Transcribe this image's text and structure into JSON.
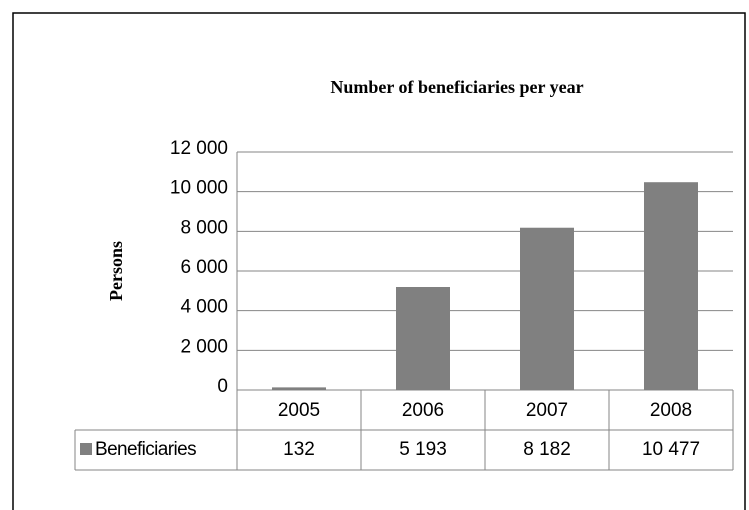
{
  "chart_data": {
    "type": "bar",
    "title": "Number of beneficiaries per year",
    "ylabel": "Persons",
    "categories": [
      "2005",
      "2006",
      "2007",
      "2008"
    ],
    "series": [
      {
        "name": "Beneficiaries",
        "color": "#808080",
        "values": [
          132,
          5193,
          8182,
          10477
        ],
        "value_labels": [
          "132",
          "5 193",
          "8 182",
          "10 477"
        ]
      }
    ],
    "ylim": [
      0,
      12000
    ],
    "yticks": [
      0,
      {
        "value": 2000,
        "label": "2 000"
      },
      {
        "value": 4000,
        "label": "4 000"
      },
      {
        "value": 6000,
        "label": "6 000"
      },
      {
        "value": 8000,
        "label": "8 000"
      },
      {
        "value": 10000,
        "label": "10 000"
      },
      {
        "value": 12000,
        "label": "12 000"
      }
    ],
    "grid": true
  }
}
